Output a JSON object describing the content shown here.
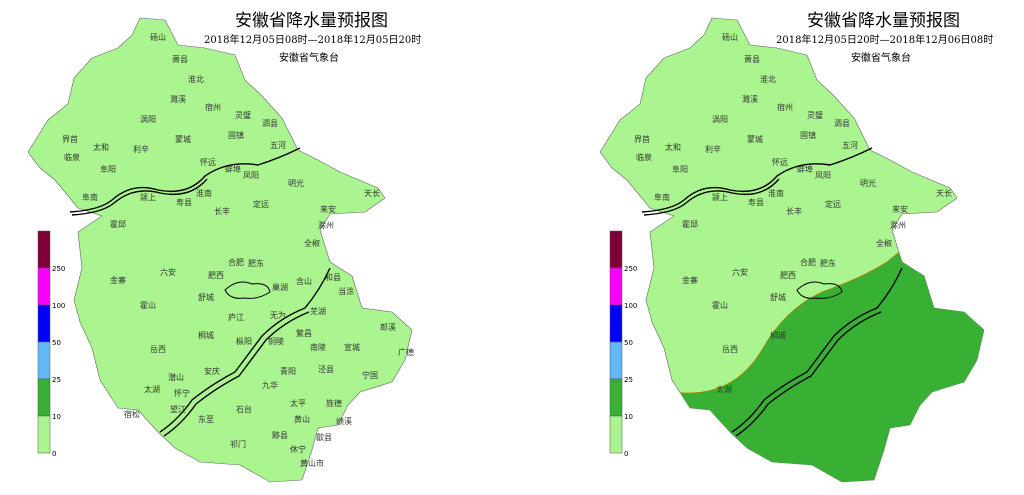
{
  "colors": {
    "level_0_10": "#aaf58f",
    "level_10_25": "#38b034",
    "level_25_50": "#63b8f7",
    "level_50_100": "#0000ff",
    "level_100_250": "#fa00fa",
    "level_250_plus": "#7f0038",
    "river": "#000000"
  },
  "legend": {
    "labels": [
      "0",
      "10",
      "25",
      "50",
      "100",
      "250"
    ]
  },
  "maps": [
    {
      "title": "安徽省降水量预报图",
      "period": "2018年12月05日08时—2018年12月05日20时",
      "agency": "安徽省气象台",
      "forecast_levels": [
        "0-10 全省"
      ],
      "cities": [
        "砀山",
        "萧县",
        "淮北",
        "宿州",
        "濉溪",
        "灵璧",
        "涡阳",
        "泗县",
        "界首",
        "太和",
        "利辛",
        "蒙城",
        "固镇",
        "临泉",
        "阜阳",
        "五河",
        "怀远",
        "蚌埠",
        "凤阳",
        "明光",
        "阜南",
        "颍上",
        "寿县",
        "淮南",
        "定远",
        "天长",
        "霍邱",
        "长丰",
        "来安",
        "滁州",
        "全椒",
        "六安",
        "合肥",
        "肥东",
        "和县",
        "金寨",
        "霍山",
        "舒城",
        "肥西",
        "含山",
        "当涂",
        "庐江",
        "巢湖",
        "无为",
        "芜湖",
        "郎溪",
        "岳西",
        "桐城",
        "繁昌",
        "南陵",
        "宣城",
        "广德",
        "潜山",
        "枞阳",
        "铜陵",
        "泾县",
        "宁国",
        "太湖",
        "怀宁",
        "安庆",
        "青阳",
        "宿松",
        "望江",
        "东至",
        "石台",
        "九华",
        "太平",
        "旌德",
        "黄山",
        "绩溪",
        "祁门",
        "黟县",
        "休宁",
        "歙县",
        "黄山市"
      ]
    },
    {
      "title": "安徽省降水量预报图",
      "period": "2018年12月05日20时—2018年12月06日08时",
      "agency": "安徽省气象台",
      "forecast_levels": [
        "0-10 江北",
        "10-25 沿江江南"
      ],
      "cities": [
        "砀山",
        "萧县",
        "淮北",
        "宿州",
        "濉溪",
        "灵璧",
        "涡阳",
        "泗县",
        "界首",
        "太和",
        "利辛",
        "蒙城",
        "固镇",
        "临泉",
        "阜阳",
        "五河",
        "怀远",
        "蚌埠",
        "凤阳",
        "明光",
        "阜南",
        "颍上",
        "寿县",
        "淮南",
        "定远",
        "天长",
        "霍邱",
        "长丰",
        "来安",
        "滁州",
        "全椒",
        "六安",
        "合肥",
        "肥东",
        "金寨",
        "霍山",
        "舒城",
        "肥西",
        "岳西",
        "桐城",
        "太湖"
      ]
    }
  ]
}
